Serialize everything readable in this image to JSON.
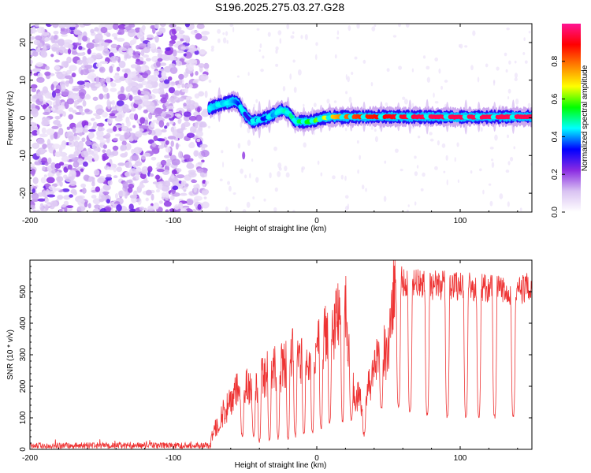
{
  "title": "S196.2025.275.03.27.G28",
  "chart_data": [
    {
      "type": "heatmap",
      "name": "spectrogram",
      "xlabel": "Height of straight line (km)",
      "ylabel": "Frequency (Hz)",
      "xlim": [
        -200,
        150
      ],
      "ylim": [
        -25,
        25
      ],
      "xticks": [
        "-200",
        "-100",
        "0",
        "100"
      ],
      "xtick_values": [
        -200,
        -100,
        0,
        100
      ],
      "yticks": [
        "-20",
        "-10",
        "0",
        "10",
        "20"
      ],
      "ytick_values": [
        -20,
        -10,
        0,
        10,
        20
      ],
      "colorbar": {
        "label": "Normalized spectral amplitude",
        "range": [
          0,
          1
        ],
        "ticks": [
          "0.0",
          "0.2",
          "0.4",
          "0.6",
          "0.8"
        ],
        "tick_values": [
          0.0,
          0.2,
          0.4,
          0.6,
          0.8
        ],
        "colors": [
          "#ffffff",
          "#d9c2f2",
          "#8a2be2",
          "#0000ff",
          "#00ffff",
          "#00ff00",
          "#ffff00",
          "#ff8000",
          "#ff0000",
          "#ff1493"
        ]
      },
      "noise_region_x": [
        -200,
        -77
      ],
      "track": {
        "x": [
          -75,
          -68,
          -62,
          -58,
          -55,
          -52,
          -48,
          -45,
          -40,
          -35,
          -30,
          -25,
          -20,
          -15,
          -10,
          -5,
          0,
          5,
          10,
          20,
          30,
          50,
          75,
          100,
          125,
          150
        ],
        "y": [
          2.5,
          3.5,
          4.0,
          4.5,
          4.0,
          2.0,
          0.0,
          -1.0,
          -0.5,
          0.0,
          1.0,
          2.0,
          1.5,
          -1.0,
          -1.0,
          -1.0,
          -0.5,
          0.0,
          0.2,
          0.3,
          0.3,
          0.3,
          0.3,
          0.2,
          0.3,
          0.3
        ],
        "amplitude": [
          0.45,
          0.4,
          0.45,
          0.4,
          0.35,
          0.3,
          0.3,
          0.3,
          0.3,
          0.35,
          0.4,
          0.45,
          0.5,
          0.5,
          0.55,
          0.55,
          0.6,
          0.65,
          0.7,
          0.8,
          0.85,
          0.9,
          0.95,
          0.95,
          0.95,
          0.95
        ]
      }
    },
    {
      "type": "line",
      "name": "snr",
      "xlabel": "Height of straight line (km)",
      "ylabel": "SNR (10 * v/v)",
      "xlim": [
        -200,
        150
      ],
      "ylim": [
        0,
        600
      ],
      "xticks": [
        "-200",
        "-100",
        "0",
        "100"
      ],
      "xtick_values": [
        -200,
        -100,
        0,
        100
      ],
      "yticks": [
        "0",
        "100",
        "200",
        "300",
        "400",
        "500"
      ],
      "ytick_values": [
        0,
        100,
        200,
        300,
        400,
        500
      ],
      "color": "#ee3333",
      "envelope": {
        "x": [
          -200,
          -75,
          -68,
          -60,
          -55,
          -50,
          -45,
          -40,
          -35,
          -30,
          -25,
          -20,
          -15,
          -10,
          -5,
          0,
          5,
          10,
          15,
          20,
          25,
          30,
          35,
          40,
          45,
          50,
          53,
          55,
          58,
          60,
          80,
          100,
          120,
          140,
          150
        ],
        "y": [
          15,
          15,
          95,
          150,
          190,
          210,
          180,
          230,
          240,
          250,
          260,
          280,
          320,
          280,
          300,
          310,
          350,
          380,
          420,
          460,
          200,
          150,
          170,
          260,
          300,
          320,
          480,
          520,
          560,
          530,
          520,
          520,
          510,
          500,
          520
        ]
      },
      "dropouts": {
        "x": [
          -68,
          -52,
          -44,
          -40,
          -33,
          -27,
          -20,
          -15,
          -9,
          -3,
          3,
          9,
          18,
          24,
          33,
          45,
          57,
          65,
          77,
          91,
          104,
          113,
          124,
          137
        ],
        "min": [
          55,
          35,
          40,
          20,
          25,
          30,
          25,
          35,
          40,
          45,
          60,
          80,
          80,
          90,
          40,
          120,
          130,
          110,
          100,
          95,
          95,
          95,
          95,
          95
        ]
      }
    }
  ]
}
